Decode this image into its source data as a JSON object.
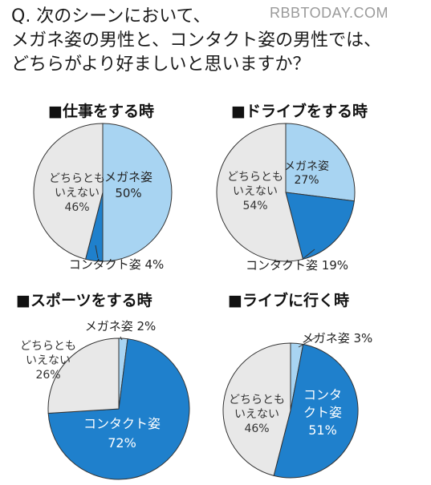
{
  "question": {
    "lines": [
      "Q. 次のシーンにおいて、",
      "メガネ姿の男性と、コンタクト姿の男性では、",
      "どちらがより好ましいと思いますか？"
    ]
  },
  "watermark": "RBBTODAY.COM",
  "colors": {
    "glasses": "#a8d4f2",
    "contact": "#1f80cc",
    "neither": "#e8e8e8",
    "outline": "#333333"
  },
  "chart_data": [
    {
      "type": "pie",
      "title": "■仕事をする時",
      "slices": [
        {
          "label_lines": [
            "メガネ姿",
            "50%"
          ],
          "value": 50,
          "color": "#a8d4f2"
        },
        {
          "label_lines": [
            "コンタクト姿 4%"
          ],
          "value": 4,
          "color": "#1f80cc"
        },
        {
          "label_lines": [
            "どちらとも",
            "いえない",
            "46%"
          ],
          "value": 46,
          "color": "#e8e8e8"
        }
      ]
    },
    {
      "type": "pie",
      "title": "■ドライブをする時",
      "slices": [
        {
          "label_lines": [
            "メガネ姿",
            "27%"
          ],
          "value": 27,
          "color": "#a8d4f2"
        },
        {
          "label_lines": [
            "コンタクト姿 19%"
          ],
          "value": 19,
          "color": "#1f80cc"
        },
        {
          "label_lines": [
            "どちらとも",
            "いえない",
            "54%"
          ],
          "value": 54,
          "color": "#e8e8e8"
        }
      ]
    },
    {
      "type": "pie",
      "title": "■スポーツをする時",
      "slices": [
        {
          "label_lines": [
            "メガネ姿 2%"
          ],
          "value": 2,
          "color": "#a8d4f2"
        },
        {
          "label_lines": [
            "コンタクト姿",
            "72%"
          ],
          "value": 72,
          "color": "#1f80cc"
        },
        {
          "label_lines": [
            "どちらとも",
            "いえない",
            "26%"
          ],
          "value": 26,
          "color": "#e8e8e8"
        }
      ]
    },
    {
      "type": "pie",
      "title": "■ライブに行く時",
      "slices": [
        {
          "label_lines": [
            "メガネ姿 3%"
          ],
          "value": 3,
          "color": "#a8d4f2"
        },
        {
          "label_lines": [
            "コンタ",
            "クト姿",
            "51%"
          ],
          "value": 51,
          "color": "#1f80cc"
        },
        {
          "label_lines": [
            "どちらとも",
            "いえない",
            "46%"
          ],
          "value": 46,
          "color": "#e8e8e8"
        }
      ]
    }
  ]
}
